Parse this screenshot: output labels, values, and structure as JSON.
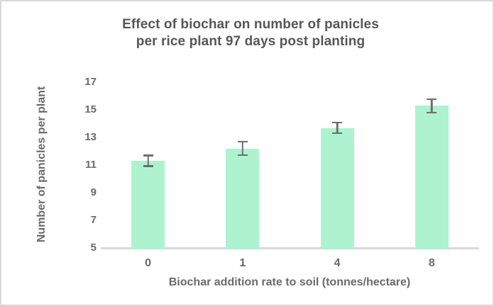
{
  "figure": {
    "title_line1": "Effect of biochar on number of panicles",
    "title_line2": "per rice plant 97 days post planting"
  },
  "chart_data": {
    "type": "bar",
    "title": "Effect of biochar on number of panicles per rice plant 97 days post planting",
    "xlabel": "Biochar addition rate to soil (tonnes/hectare)",
    "ylabel": "Number of panicles per plant",
    "categories": [
      "0",
      "1",
      "4",
      "8"
    ],
    "values": [
      11.3,
      12.2,
      13.7,
      15.3
    ],
    "error_bars": [
      0.45,
      0.55,
      0.45,
      0.55
    ],
    "yticks": [
      5,
      7,
      9,
      11,
      13,
      15,
      17
    ],
    "ylim": [
      5,
      17
    ],
    "grid": false,
    "legend": "none",
    "bar_color": "#aef3cf",
    "error_color": "#6e6e6e",
    "axis_line_color": "#d9d9d9",
    "label_color": "#6a6a6a",
    "title_color": "#575757"
  }
}
